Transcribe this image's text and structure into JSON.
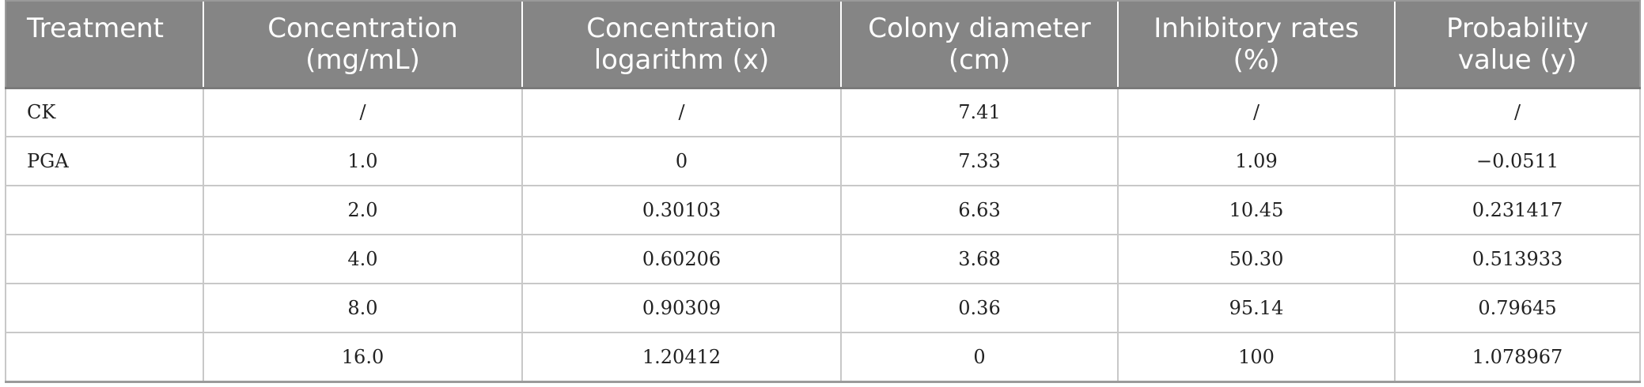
{
  "table": {
    "headers": [
      "Treatment",
      "Concentration (mg/mL)",
      "Concentration logarithm (x)",
      "Colony diameter (cm)",
      "Inhibitory rates (%)",
      "Probability value (y)"
    ],
    "header_lines": [
      [
        "Treatment",
        ""
      ],
      [
        "Concentration",
        "(mg/mL)"
      ],
      [
        "Concentration",
        "logarithm (x)"
      ],
      [
        "Colony diameter",
        "(cm)"
      ],
      [
        "Inhibitory rates",
        "(%)"
      ],
      [
        "Probability",
        "value (y)"
      ]
    ],
    "rows": [
      [
        "CK",
        "/",
        "/",
        "7.41",
        "/",
        "/"
      ],
      [
        "PGA",
        "1.0",
        "0",
        "7.33",
        "1.09",
        "−0.0511"
      ],
      [
        "",
        "2.0",
        "0.30103",
        "6.63",
        "10.45",
        "0.231417"
      ],
      [
        "",
        "4.0",
        "0.60206",
        "3.68",
        "50.30",
        "0.513933"
      ],
      [
        "",
        "8.0",
        "0.90309",
        "0.36",
        "95.14",
        "0.79645"
      ],
      [
        "",
        "16.0",
        "1.20412",
        "0",
        "100",
        "1.078967"
      ]
    ]
  },
  "colors": {
    "header_background": "#858585",
    "header_text": "#ffffff",
    "cell_border": "#c8c8c8"
  }
}
